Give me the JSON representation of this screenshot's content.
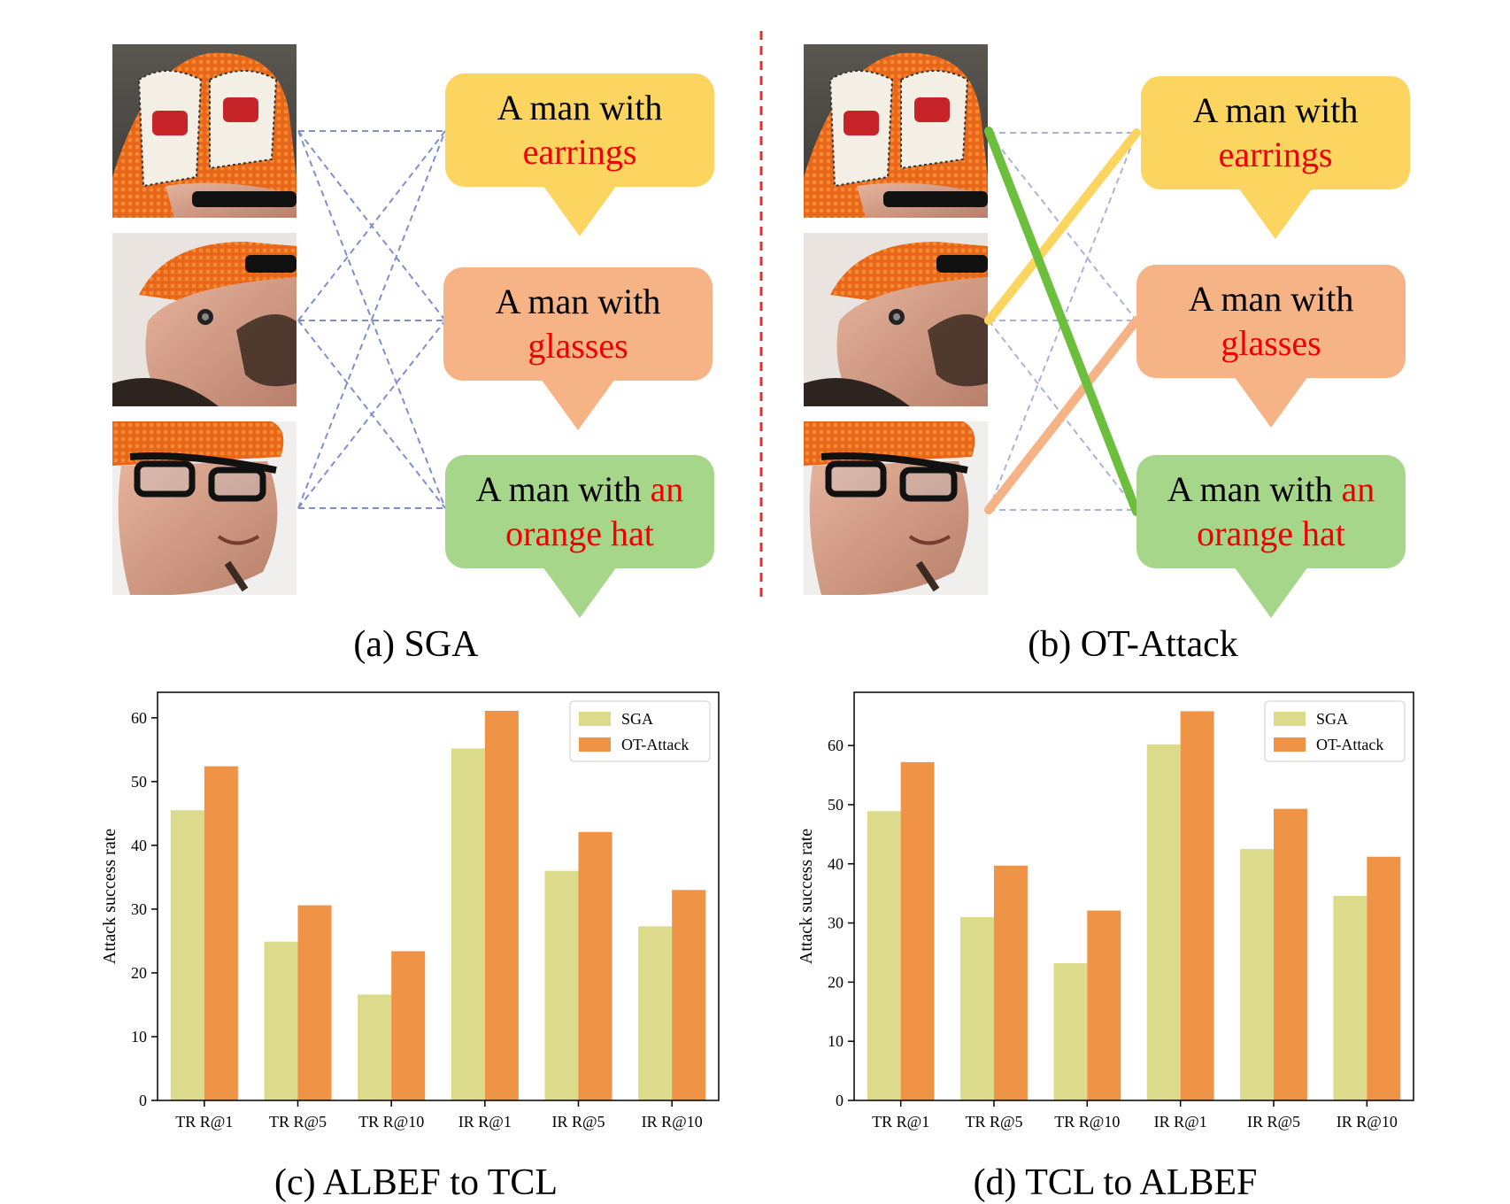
{
  "panels": {
    "a": {
      "caption": "(a) SGA",
      "bubbles": [
        {
          "line1": "A man with",
          "line2": "earrings"
        },
        {
          "line1": "A man with",
          "line2": "glasses"
        },
        {
          "line1": "A man with",
          "line1_hl": "an",
          "line2": "orange hat"
        }
      ]
    },
    "b": {
      "caption": "(b) OT-Attack",
      "bubbles": [
        {
          "line1": "A man with",
          "line2": "earrings"
        },
        {
          "line1": "A man with",
          "line2": "glasses"
        },
        {
          "line1": "A man with",
          "line1_hl": "an",
          "line2": "orange hat"
        }
      ]
    },
    "c": {
      "caption": "(c) ALBEF to TCL"
    },
    "d": {
      "caption": "(d) TCL to ALBEF"
    }
  },
  "photos": [
    "hat-crop",
    "earring-crop",
    "glasses-crop"
  ],
  "colors": {
    "sga_bar": "#dcdb8c",
    "ot_bar": "#ef9347",
    "divider": "#e03030",
    "dashed": "#7f8fcc",
    "match_yellow": "#fcd561",
    "match_peach": "#f5b386",
    "match_green": "#6cbf3c",
    "highlight_text": "#f00000"
  },
  "chart_data": [
    {
      "type": "bar",
      "title": "(c) ALBEF to TCL",
      "categories": [
        "TR R@1",
        "TR R@5",
        "TR R@10",
        "IR R@1",
        "IR R@5",
        "IR R@10"
      ],
      "series": [
        {
          "name": "SGA",
          "values": [
            45.5,
            24.9,
            16.6,
            55.2,
            36.0,
            27.3
          ]
        },
        {
          "name": "OT-Attack",
          "values": [
            52.4,
            30.6,
            23.4,
            61.1,
            42.1,
            33.0
          ]
        }
      ],
      "xlabel": "",
      "ylabel": "Attack success rate",
      "ylim": [
        0,
        64
      ],
      "yticks": [
        0,
        10,
        20,
        30,
        40,
        50,
        60
      ],
      "legend": "top-right"
    },
    {
      "type": "bar",
      "title": "(d) TCL to ALBEF",
      "categories": [
        "TR R@1",
        "TR R@5",
        "TR R@10",
        "IR R@1",
        "IR R@5",
        "IR R@10"
      ],
      "series": [
        {
          "name": "SGA",
          "values": [
            48.9,
            31.0,
            23.2,
            60.2,
            42.5,
            34.6
          ]
        },
        {
          "name": "OT-Attack",
          "values": [
            57.2,
            39.7,
            32.1,
            65.8,
            49.3,
            41.2
          ]
        }
      ],
      "xlabel": "",
      "ylabel": "Attack success rate",
      "ylim": [
        0,
        69
      ],
      "yticks": [
        0,
        10,
        20,
        30,
        40,
        50,
        60
      ],
      "legend": "top-right"
    }
  ]
}
